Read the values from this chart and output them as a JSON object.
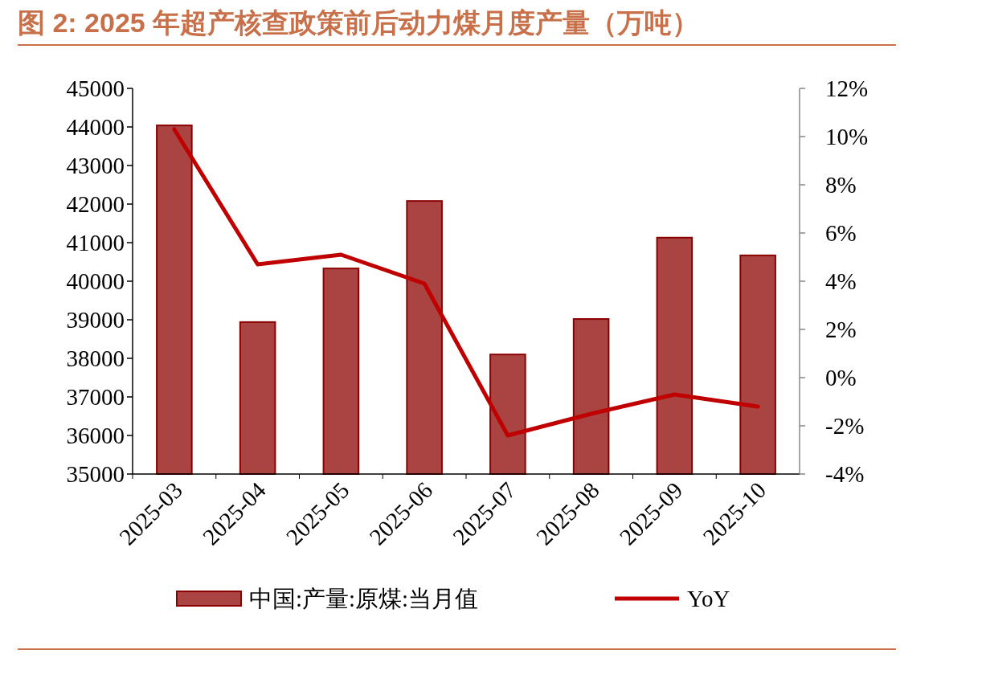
{
  "chart_data": {
    "type": "bar",
    "title": "图 2:  2025 年超产核查政策前后动力煤月度产量（万吨）",
    "categories": [
      "2025-03",
      "2025-04",
      "2025-05",
      "2025-06",
      "2025-07",
      "2025-08",
      "2025-09",
      "2025-10"
    ],
    "series": [
      {
        "name": "中国:产量:原煤:当月值",
        "color": "#a94442",
        "values": [
          44040,
          38940,
          40330,
          42080,
          38100,
          39020,
          41130,
          40670
        ]
      },
      {
        "name": "YoY",
        "type": "line",
        "axis": "y2",
        "color": "#c00000",
        "values": [
          10.3,
          4.7,
          5.1,
          3.9,
          -2.4,
          -1.5,
          -0.7,
          -1.2
        ]
      }
    ],
    "ylim": [
      35000,
      45000
    ],
    "yticks": [
      35000,
      36000,
      37000,
      38000,
      39000,
      40000,
      41000,
      42000,
      43000,
      44000,
      45000
    ],
    "y2lim": [
      -4,
      12
    ],
    "y2ticks": [
      {
        "value": -4,
        "label": "-4%"
      },
      {
        "value": -2,
        "label": "-2%"
      },
      {
        "value": 0,
        "label": "0%"
      },
      {
        "value": 2,
        "label": "2%"
      },
      {
        "value": 4,
        "label": "4%"
      },
      {
        "value": 6,
        "label": "6%"
      },
      {
        "value": 8,
        "label": "8%"
      },
      {
        "value": 10,
        "label": "10%"
      },
      {
        "value": 12,
        "label": "12%"
      }
    ],
    "legend": "bottom",
    "grid": false
  }
}
